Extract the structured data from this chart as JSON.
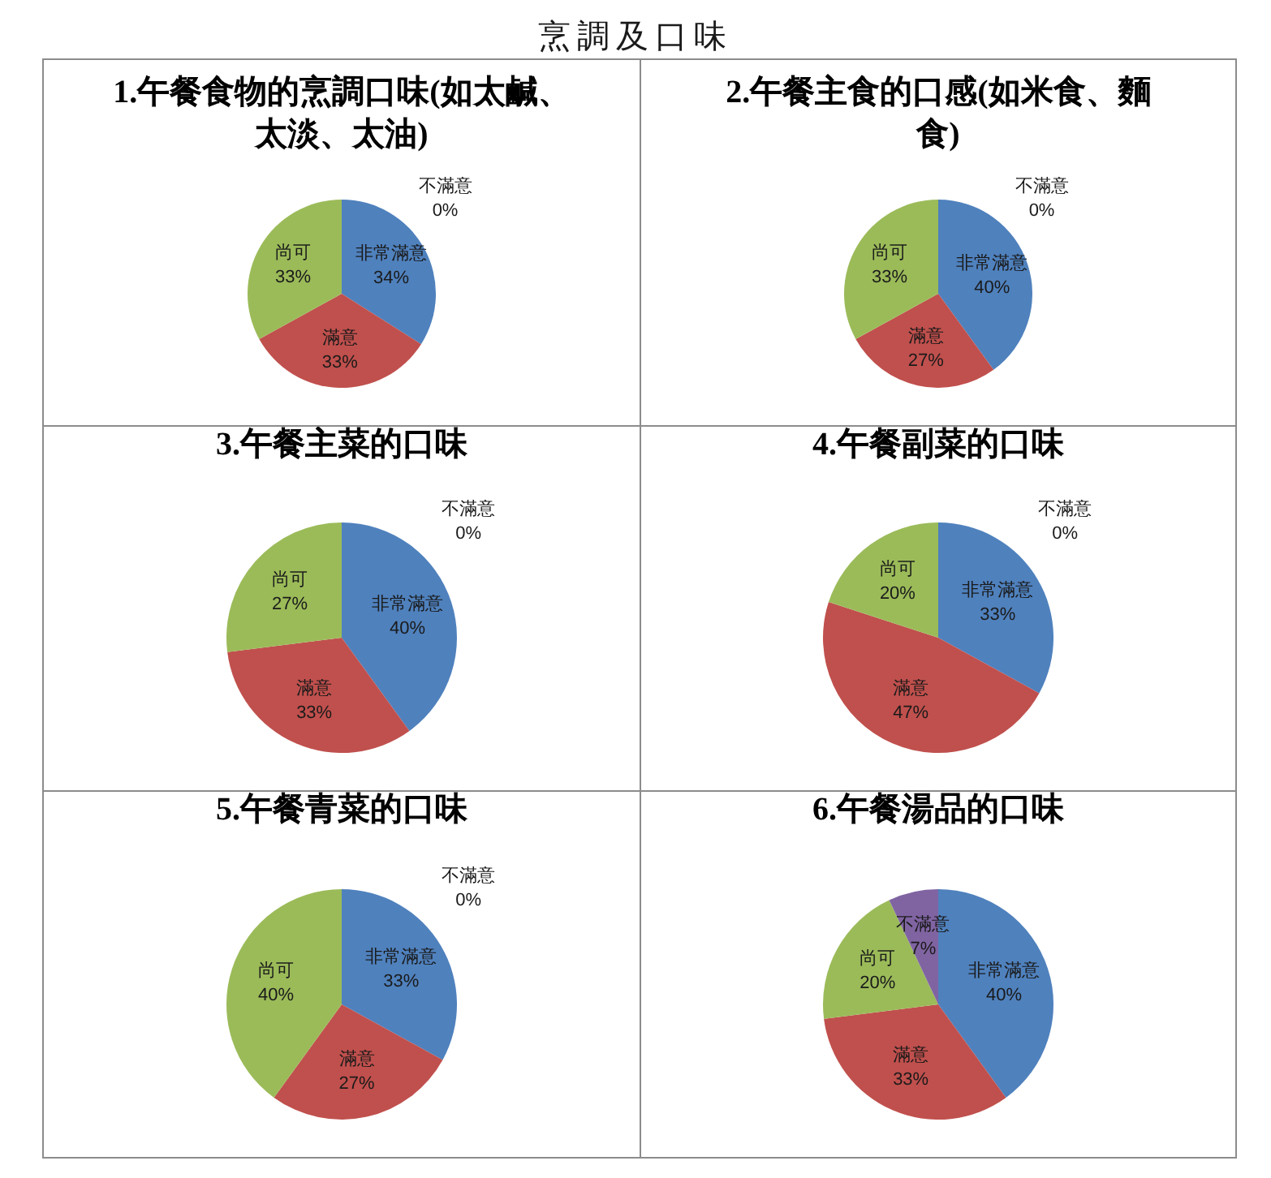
{
  "chart_data": [
    {
      "type": "pie",
      "title": "1.午餐食物的烹調口味(如太鹹、太淡、太油)",
      "categories": [
        "非常滿意",
        "滿意",
        "尚可",
        "不滿意"
      ],
      "values": [
        34,
        33,
        33,
        0
      ],
      "colors": [
        "#4f81bd",
        "#c0504d",
        "#9bbb59",
        "#8064a2"
      ],
      "value_labels": [
        "34%",
        "33%",
        "33%",
        "0%"
      ],
      "annotations": [
        "烹調及口味"
      ]
    },
    {
      "type": "pie",
      "title": "2.午餐主食的口感(如米食、麵食)",
      "categories": [
        "非常滿意",
        "滿意",
        "尚可",
        "不滿意"
      ],
      "values": [
        40,
        27,
        33,
        0
      ],
      "colors": [
        "#4f81bd",
        "#c0504d",
        "#9bbb59",
        "#8064a2"
      ],
      "value_labels": [
        "40%",
        "27%",
        "33%",
        "0%"
      ]
    },
    {
      "type": "pie",
      "title": "3.午餐主菜的口味",
      "categories": [
        "非常滿意",
        "滿意",
        "尚可",
        "不滿意"
      ],
      "values": [
        40,
        33,
        27,
        0
      ],
      "colors": [
        "#4f81bd",
        "#c0504d",
        "#9bbb59",
        "#8064a2"
      ],
      "value_labels": [
        "40%",
        "33%",
        "27%",
        "0%"
      ]
    },
    {
      "type": "pie",
      "title": "4.午餐副菜的口味",
      "categories": [
        "非常滿意",
        "滿意",
        "尚可",
        "不滿意"
      ],
      "values": [
        33,
        47,
        20,
        0
      ],
      "colors": [
        "#4f81bd",
        "#c0504d",
        "#9bbb59",
        "#8064a2"
      ],
      "value_labels": [
        "33%",
        "47%",
        "20%",
        "0%"
      ]
    },
    {
      "type": "pie",
      "title": "5.午餐青菜的口味",
      "categories": [
        "非常滿意",
        "滿意",
        "尚可",
        "不滿意"
      ],
      "values": [
        33,
        27,
        40,
        0
      ],
      "colors": [
        "#4f81bd",
        "#c0504d",
        "#9bbb59",
        "#8064a2"
      ],
      "value_labels": [
        "33%",
        "27%",
        "40%",
        "0%"
      ]
    },
    {
      "type": "pie",
      "title": "6.午餐湯品的口味",
      "categories": [
        "非常滿意",
        "滿意",
        "尚可",
        "不滿意"
      ],
      "values": [
        40,
        33,
        20,
        7
      ],
      "colors": [
        "#4f81bd",
        "#c0504d",
        "#9bbb59",
        "#8064a2"
      ],
      "value_labels": [
        "40%",
        "33%",
        "20%",
        "7%"
      ]
    }
  ]
}
